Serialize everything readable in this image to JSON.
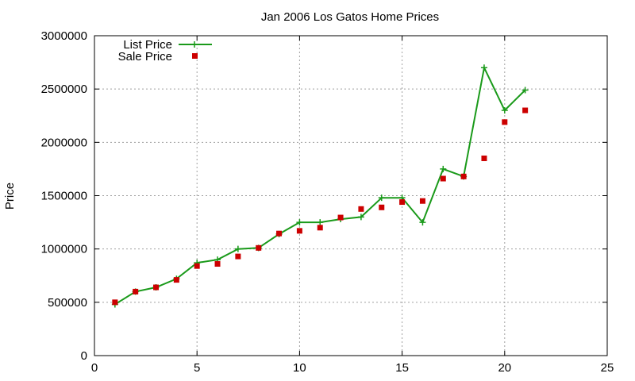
{
  "chart_data": {
    "type": "line",
    "title": "Jan 2006 Los Gatos Home Prices",
    "xlabel": "",
    "ylabel": "Price",
    "xlim": [
      0,
      25
    ],
    "ylim": [
      0,
      3000000
    ],
    "xticks": [
      "0",
      "5",
      "10",
      "15",
      "20",
      "25"
    ],
    "yticks": [
      "0",
      "500000",
      "1000000",
      "1500000",
      "2000000",
      "2500000",
      "3000000"
    ],
    "grid": true,
    "legend_position": "top-left",
    "series": [
      {
        "name": "List Price",
        "style": "line-plus",
        "color": "#1a9a1a",
        "x": [
          1,
          2,
          3,
          4,
          5,
          6,
          7,
          8,
          9,
          10,
          11,
          12,
          13,
          14,
          15,
          16,
          17,
          18,
          19,
          20,
          21
        ],
        "y": [
          480000,
          600000,
          640000,
          720000,
          870000,
          900000,
          1000000,
          1010000,
          1140000,
          1250000,
          1250000,
          1280000,
          1300000,
          1480000,
          1480000,
          1250000,
          1750000,
          1680000,
          2700000,
          2300000,
          2490000
        ]
      },
      {
        "name": "Sale Price",
        "style": "square-points",
        "color": "#cc0000",
        "x": [
          1,
          2,
          3,
          4,
          5,
          6,
          7,
          8,
          9,
          10,
          11,
          12,
          13,
          14,
          15,
          16,
          17,
          18,
          19,
          20,
          21
        ],
        "y": [
          500000,
          600000,
          640000,
          710000,
          840000,
          860000,
          930000,
          1010000,
          1145000,
          1170000,
          1200000,
          1295000,
          1375000,
          1390000,
          1440000,
          1450000,
          1660000,
          1680000,
          1850000,
          2190000,
          2300000
        ]
      }
    ]
  }
}
